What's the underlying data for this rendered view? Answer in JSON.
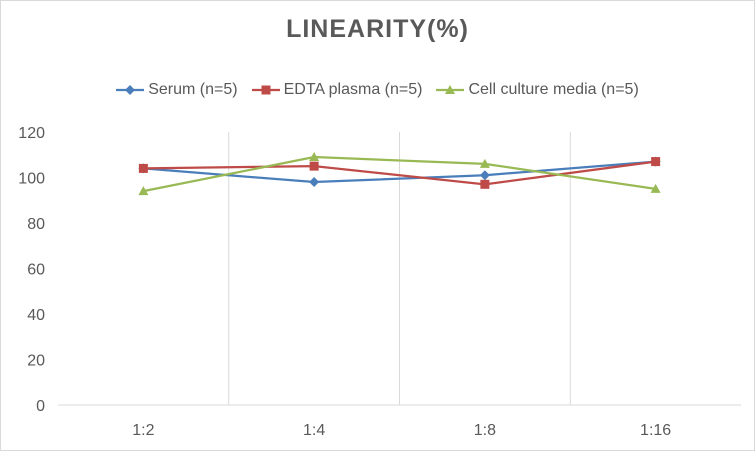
{
  "chart_data": {
    "type": "line",
    "title": "LINEARITY(%)",
    "categories": [
      "1:2",
      "1:4",
      "1:8",
      "1:16"
    ],
    "ylim": [
      0,
      120
    ],
    "yticks": [
      0,
      20,
      40,
      60,
      80,
      100,
      120
    ],
    "grid": "vertical",
    "legend": "top",
    "series": [
      {
        "name": "Serum (n=5)",
        "values": [
          104,
          98,
          101,
          107
        ],
        "color": "#4a7ebb",
        "marker": "diamond"
      },
      {
        "name": "EDTA plasma (n=5)",
        "values": [
          104,
          105,
          97,
          107
        ],
        "color": "#be4b48",
        "marker": "square"
      },
      {
        "name": "Cell culture media (n=5)",
        "values": [
          94,
          109,
          106,
          95
        ],
        "color": "#98b954",
        "marker": "triangle"
      }
    ]
  }
}
